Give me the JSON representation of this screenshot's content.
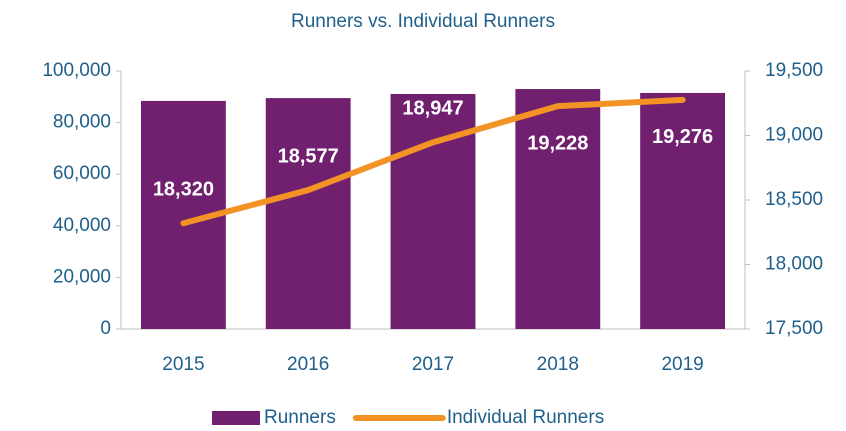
{
  "chart_data": {
    "type": "bar_line",
    "title": "Runners vs. Individual Runners",
    "categories": [
      "2015",
      "2016",
      "2017",
      "2018",
      "2019"
    ],
    "series": [
      {
        "name": "Runners",
        "type": "bar",
        "color": "#70206f",
        "values": [
          88400,
          89500,
          91100,
          93000,
          91500
        ]
      },
      {
        "name": "Individual Runners",
        "type": "line",
        "axis": "y2",
        "color": "#f39325",
        "values": [
          18320,
          18577,
          18947,
          19228,
          19276
        ],
        "value_labels": [
          "18,320",
          "18,577",
          "18,947",
          "19,228",
          "19,276"
        ]
      }
    ],
    "ylim": [
      0,
      100000
    ],
    "yticks": [
      0,
      {
        "value": 20000,
        "label": "20,000"
      },
      {
        "value": 40000,
        "label": "40,000"
      },
      {
        "value": 60000,
        "label": "60,000"
      },
      {
        "value": 80000,
        "label": "80,000"
      },
      {
        "value": 100000,
        "label": "100,000"
      }
    ],
    "y2lim": [
      17500,
      19500
    ],
    "y2ticks": [
      {
        "value": 17500,
        "label": "17,500"
      },
      {
        "value": 18000,
        "label": "18,000"
      },
      {
        "value": 18500,
        "label": "18,500"
      },
      {
        "value": 19000,
        "label": "19,000"
      },
      {
        "value": 19500,
        "label": "19,500"
      }
    ],
    "grid": false,
    "legend": "bottom"
  }
}
